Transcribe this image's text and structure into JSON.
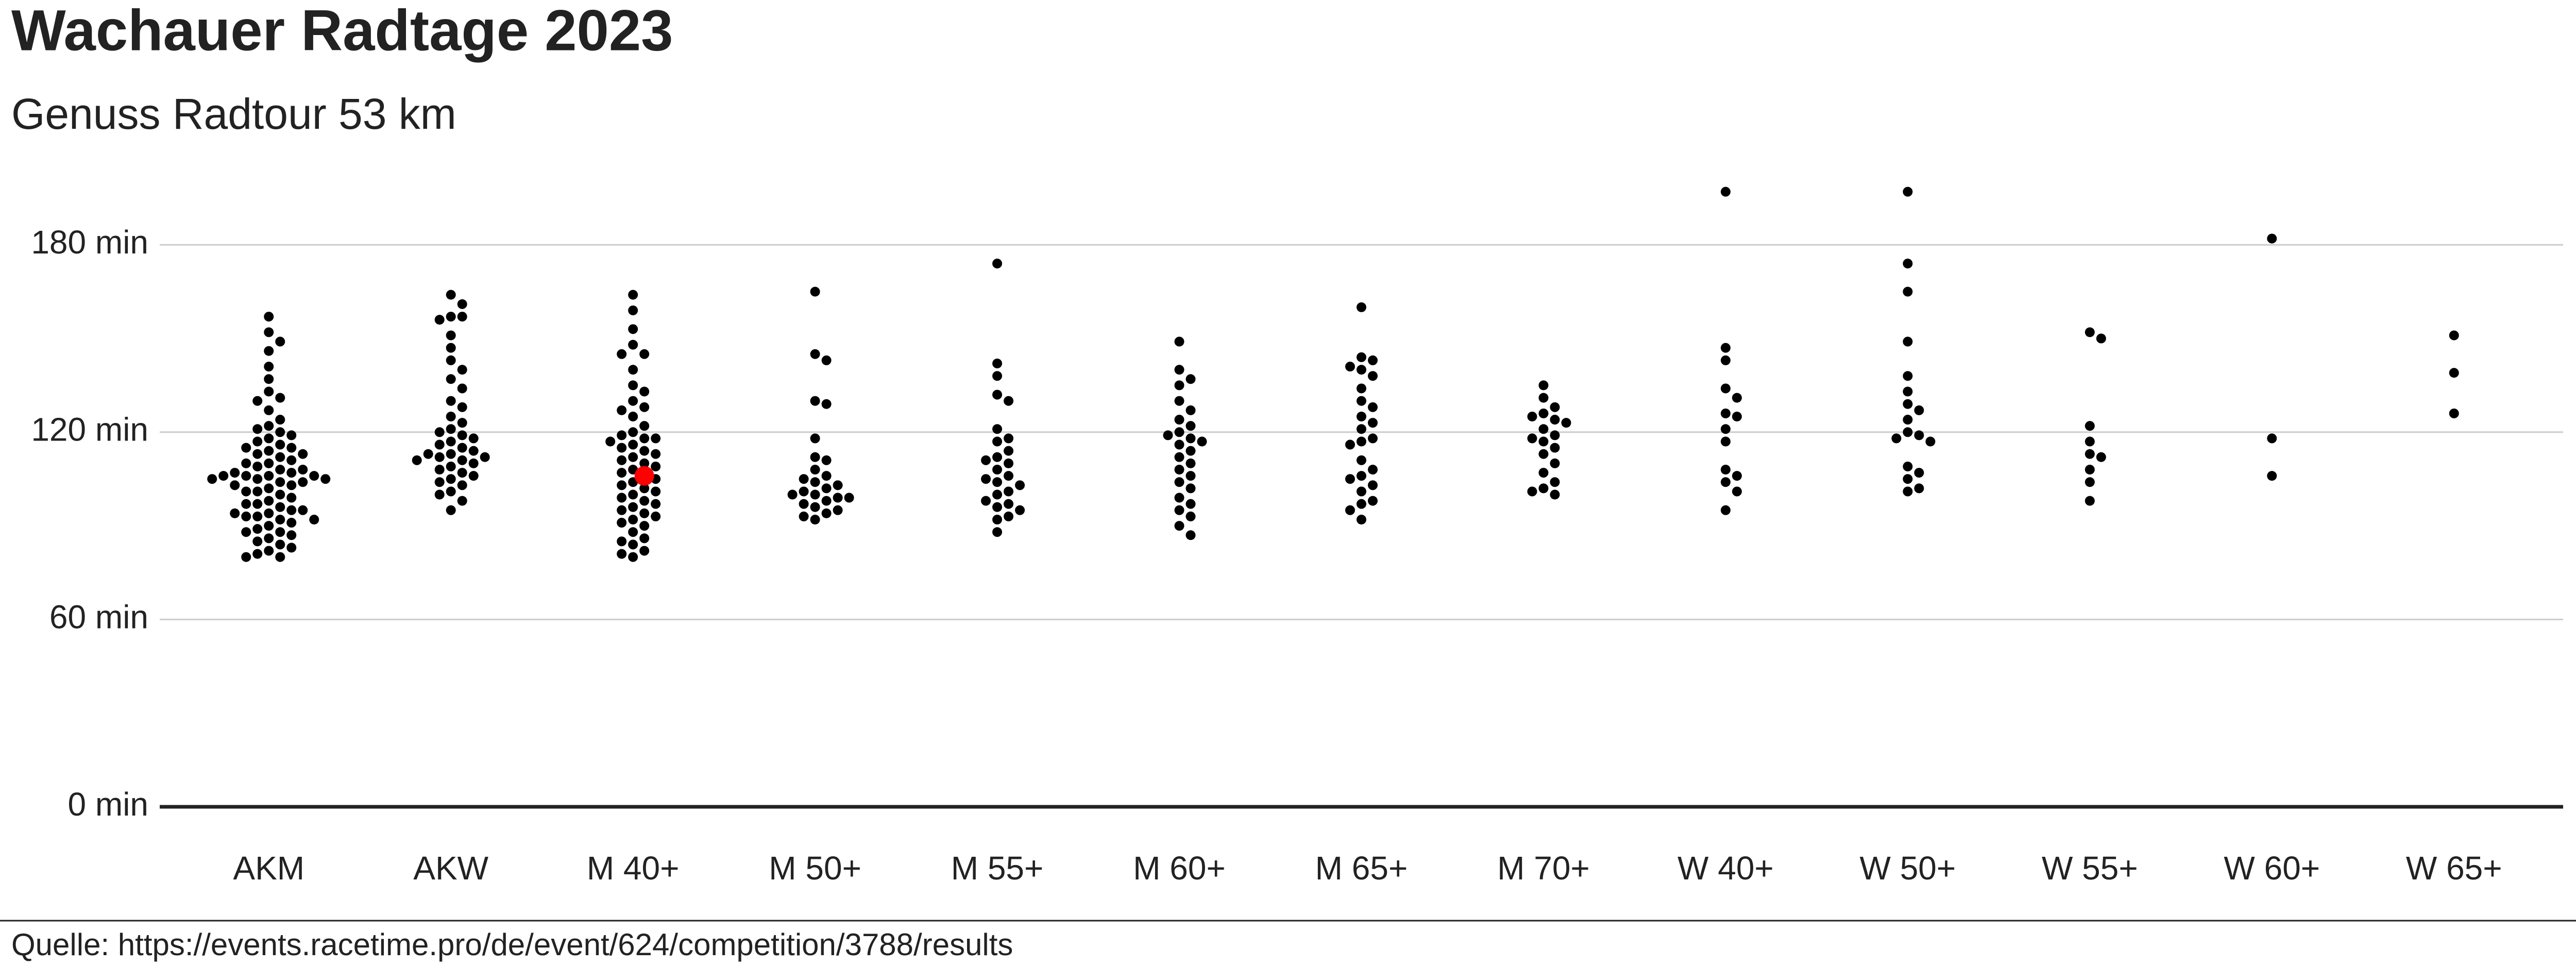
{
  "chart_data": {
    "type": "beeswarm",
    "title": "Wachauer Radtage 2023",
    "subtitle": "Genuss Radtour 53 km",
    "caption": "Quelle: https://events.racetime.pro/de/event/624/competition/3788/results",
    "categories": [
      "AKM",
      "AKW",
      "M 40+",
      "M 50+",
      "M 55+",
      "M 60+",
      "M 65+",
      "M 70+",
      "W 40+",
      "W 50+",
      "W 55+",
      "W 60+",
      "W 65+"
    ],
    "color": "#000000",
    "values": [
      [
        157,
        152,
        149,
        146,
        141,
        137,
        133,
        131,
        130,
        127,
        124,
        122,
        121,
        120,
        119,
        118,
        117,
        116,
        115,
        115,
        114,
        113,
        113,
        112,
        111,
        110,
        110,
        109,
        108,
        108,
        107,
        107,
        106,
        106,
        106,
        106,
        105,
        105,
        105,
        104,
        104,
        103,
        103,
        102,
        101,
        101,
        100,
        99,
        98,
        97,
        97,
        96,
        95,
        95,
        94,
        94,
        93,
        93,
        92,
        92,
        91,
        90,
        89,
        88,
        88,
        87,
        86,
        85,
        84,
        83,
        82,
        81,
        80,
        80
      ],
      [
        164,
        161,
        157,
        157,
        156,
        151,
        147,
        143,
        140,
        137,
        134,
        130,
        128,
        125,
        123,
        121,
        120,
        119,
        118,
        117,
        116,
        115,
        114,
        113,
        113,
        112,
        112,
        111,
        111,
        110,
        109,
        108,
        107,
        106,
        105,
        104,
        103,
        101,
        100,
        98,
        95
      ],
      [
        164,
        159,
        153,
        148,
        145,
        145,
        140,
        135,
        133,
        130,
        128,
        127,
        125,
        122,
        120,
        119,
        118,
        118,
        117,
        116,
        115,
        114,
        113,
        112,
        111,
        110,
        109,
        108,
        107,
        106,
        105,
        104,
        103,
        102,
        101,
        100,
        99,
        98,
        97,
        96,
        95,
        94,
        93,
        92,
        91,
        90,
        88,
        86,
        85,
        84,
        82,
        81,
        80
      ],
      [
        165,
        145,
        143,
        130,
        129,
        118,
        112,
        111,
        108,
        106,
        105,
        104,
        103,
        102,
        101,
        100,
        100,
        99,
        99,
        98,
        97,
        96,
        95,
        94,
        93,
        92
      ],
      [
        174,
        142,
        138,
        132,
        130,
        121,
        118,
        117,
        114,
        112,
        111,
        110,
        108,
        106,
        105,
        104,
        103,
        101,
        100,
        98,
        97,
        96,
        95,
        93,
        92,
        88
      ],
      [
        149,
        140,
        137,
        135,
        130,
        127,
        124,
        122,
        120,
        119,
        118,
        117,
        116,
        114,
        112,
        110,
        108,
        106,
        104,
        102,
        99,
        97,
        95,
        93,
        90,
        87
      ],
      [
        160,
        144,
        143,
        141,
        140,
        138,
        134,
        130,
        128,
        125,
        123,
        121,
        118,
        117,
        116,
        111,
        108,
        106,
        105,
        103,
        101,
        98,
        97,
        95,
        92
      ],
      [
        135,
        131,
        128,
        126,
        125,
        124,
        123,
        121,
        119,
        118,
        117,
        115,
        113,
        110,
        107,
        104,
        102,
        101,
        100
      ],
      [
        197,
        147,
        143,
        134,
        131,
        126,
        125,
        121,
        117,
        108,
        106,
        104,
        101,
        95
      ],
      [
        197,
        174,
        165,
        149,
        138,
        133,
        129,
        127,
        124,
        120,
        119,
        118,
        117,
        109,
        107,
        105,
        102,
        101
      ],
      [
        150,
        152,
        122,
        117,
        113,
        112,
        108,
        104,
        98
      ],
      [
        182,
        118,
        106
      ],
      [
        151,
        139,
        126
      ]
    ],
    "highlight": {
      "category": "M 40+",
      "value": 106,
      "color": "#ff0000"
    },
    "ylim": [
      0,
      200
    ],
    "yticks": [
      {
        "value": 0,
        "label": "0 min"
      },
      {
        "value": 60,
        "label": "60 min"
      },
      {
        "value": 120,
        "label": "120 min"
      },
      {
        "value": 180,
        "label": "180 min"
      }
    ],
    "grid": true
  }
}
